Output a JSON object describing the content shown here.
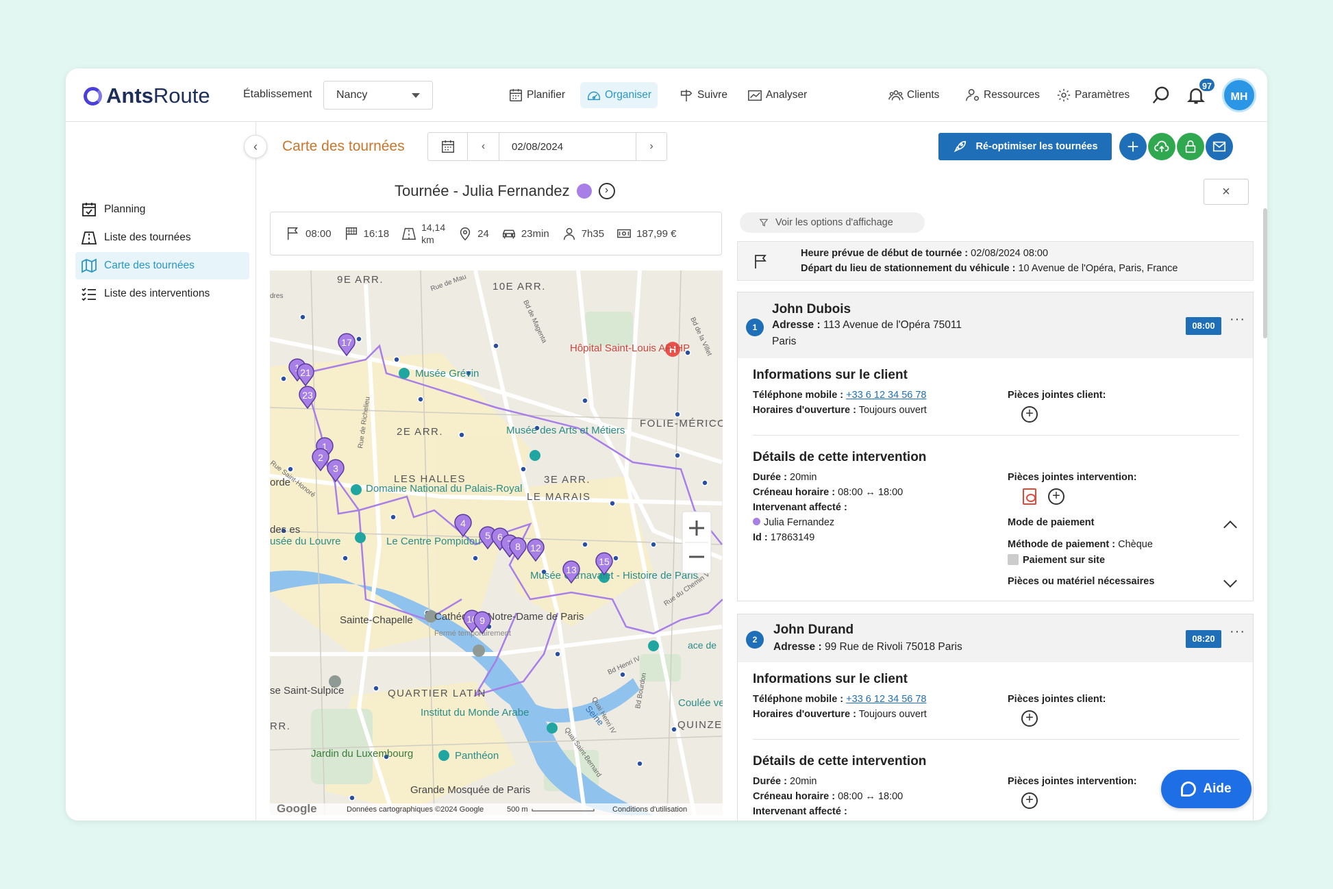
{
  "header": {
    "logo_bold": "Ants",
    "logo_rest": "Route",
    "etablissement_label": "Établissement",
    "etablissement_value": "Nancy",
    "nav": [
      "Planifier",
      "Organiser",
      "Suivre",
      "Analyser"
    ],
    "nav_right": [
      "Clients",
      "Ressources",
      "Paramètres"
    ],
    "notif_count": "97",
    "avatar": "MH"
  },
  "sidebar": {
    "items": [
      "Planning",
      "Liste des tournées",
      "Carte des tournées",
      "Liste des interventions"
    ],
    "active": "Carte des tournées"
  },
  "toolbar": {
    "page_title": "Carte des tournées",
    "date": "02/08/2024",
    "reoptimize": "Ré-optimiser les tournées"
  },
  "tour": {
    "title": "Tournée - Julia Fernandez",
    "color": "#a77fe7",
    "stats": {
      "start": "08:00",
      "end": "16:18",
      "distance_value": "14,14",
      "distance_unit": "km",
      "stops": "24",
      "drive": "23min",
      "work": "7h35",
      "cost": "187,99 €"
    }
  },
  "map": {
    "districts": [
      "9E ARR.",
      "10E ARR.",
      "2E ARR.",
      "3E ARR.",
      "LE MARAIS",
      "LES HALLES",
      "FOLIE-MÉRICO",
      "QUARTIER LATIN",
      "QUINZE-VIN",
      "RR."
    ],
    "pois": [
      "Musée Grévin",
      "Hôpital Saint-Louis AP-HP",
      "Musée des Arts et Métiers",
      "Domaine National du Palais-Royal",
      "Le Centre Pompidou",
      "Musée Carnavalet - Histoire de Paris",
      "Sainte-Chapelle",
      "Cathédrale Notre-Dame de Paris",
      "Fermé temporairement",
      "Institut du Monde Arabe",
      "Panthéon",
      "Jardin du Luxembourg",
      "Grande Mosquée de Paris",
      "Coulée verte René-Dumont",
      "usée du Louvre",
      "se Saint-Sulpice",
      "orde",
      "des es"
    ],
    "streets": [
      "Rue de Mau",
      "Bd de Magenta",
      "Bd de la Villet",
      "Rue de Richelieu",
      "Rue Saint-Honoré",
      "Rue du Chemin V",
      "Bd Henri IV",
      "Bd Bourdon",
      "Quai Henri IV",
      "Seine",
      "Quai Saint-Bernard",
      "dres",
      "ace de"
    ],
    "footer": [
      "Google",
      "Données cartographiques ©2024 Google",
      "500 m",
      "Conditions d'utilisation"
    ],
    "markers": [
      "1",
      "21",
      "23",
      "17",
      "1",
      "2",
      "3",
      "4",
      "5",
      "6",
      "7",
      "8",
      "12",
      "13",
      "15",
      "10",
      "9"
    ]
  },
  "panel": {
    "display_options": "Voir les options d'affichage",
    "start_label": "Heure prévue de début de tournée :",
    "start_value": "02/08/2024 08:00",
    "depart_label": "Départ du lieu de stationnement du véhicule :",
    "depart_value": "10 Avenue de l'Opéra, Paris, France",
    "cards": [
      {
        "num": "1",
        "name": "John Dubois",
        "addr_label": "Adresse :",
        "addr_value": "113 Avenue de l'Opéra 75011",
        "addr_city": "Paris",
        "time": "08:00",
        "client_title": "Informations sur le client",
        "phone_label": "Téléphone mobile :",
        "phone": "+33 6 12 34 56 78",
        "hours_label": "Horaires d'ouverture :",
        "hours": "Toujours ouvert",
        "client_attach": "Pièces jointes client:",
        "details_title": "Détails de cette intervention",
        "duree_label": "Durée :",
        "duree": "20min",
        "creneau_label": "Créneau horaire :",
        "creneau": "08:00 ↔ 18:00",
        "intervenant_label": "Intervenant affecté :",
        "intervenant": "Julia Fernandez",
        "id_label": "Id :",
        "id": "17863149",
        "inter_attach": "Pièces jointes intervention:",
        "payment_title": "Mode de paiement",
        "payment_label": "Méthode de paiement :",
        "payment": "Chèque",
        "onsite": "Paiement sur site",
        "materials": "Pièces ou matériel nécessaires"
      },
      {
        "num": "2",
        "name": "John Durand",
        "addr_label": "Adresse :",
        "addr_value": "99 Rue de Rivoli 75018 Paris",
        "time": "08:20",
        "client_title": "Informations sur le client",
        "phone_label": "Téléphone mobile :",
        "phone": "+33 6 12 34 56 78",
        "hours_label": "Horaires d'ouverture :",
        "hours": "Toujours ouvert",
        "client_attach": "Pièces jointes client:",
        "details_title": "Détails de cette intervention",
        "duree_label": "Durée :",
        "duree": "20min",
        "creneau_label": "Créneau horaire :",
        "creneau": "08:00 ↔ 18:00",
        "intervenant_label": "Intervenant affecté :",
        "inter_attach": "Pièces jointes intervention:"
      }
    ]
  },
  "help": {
    "label": "Aide"
  },
  "colors": {
    "primary": "#1e6fb8",
    "accent_orange": "#c8762b",
    "route": "#a77fe7",
    "active_nav": "#2b96c3"
  }
}
